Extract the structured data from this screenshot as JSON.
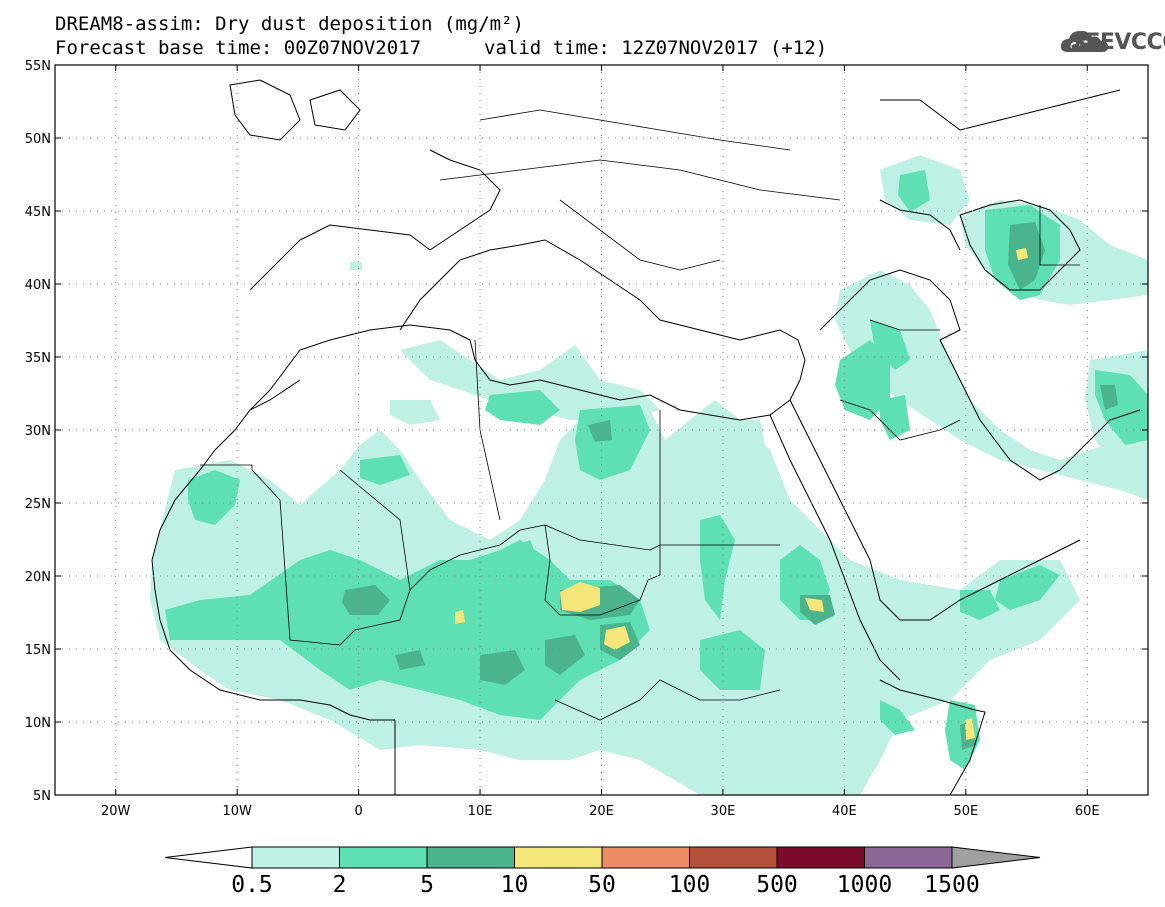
{
  "header": {
    "title": "DREAM8-assim: Dry dust deposition (mg/m²)",
    "base_time": "Forecast base time: 00Z07NOV2017",
    "valid_time": "valid time: 12Z07NOV2017 (+12)",
    "logo_text": "SEEVCCC"
  },
  "map": {
    "lon_range": [
      -25,
      65
    ],
    "lat_range": [
      5,
      55
    ],
    "lat_ticks": [
      {
        "v": 55,
        "label": "55N"
      },
      {
        "v": 50,
        "label": "50N"
      },
      {
        "v": 45,
        "label": "45N"
      },
      {
        "v": 40,
        "label": "40N"
      },
      {
        "v": 35,
        "label": "35N"
      },
      {
        "v": 30,
        "label": "30N"
      },
      {
        "v": 25,
        "label": "25N"
      },
      {
        "v": 20,
        "label": "20N"
      },
      {
        "v": 15,
        "label": "15N"
      },
      {
        "v": 10,
        "label": "10N"
      },
      {
        "v": 5,
        "label": "5N"
      }
    ],
    "lon_ticks": [
      {
        "v": -20,
        "label": "20W"
      },
      {
        "v": -10,
        "label": "10W"
      },
      {
        "v": 0,
        "label": "0"
      },
      {
        "v": 10,
        "label": "10E"
      },
      {
        "v": 20,
        "label": "20E"
      },
      {
        "v": 30,
        "label": "30E"
      },
      {
        "v": 40,
        "label": "40E"
      },
      {
        "v": 50,
        "label": "50E"
      },
      {
        "v": 60,
        "label": "60E"
      }
    ]
  },
  "colorbar": {
    "levels": [
      "0.5",
      "2",
      "5",
      "10",
      "50",
      "100",
      "500",
      "1000",
      "1500"
    ],
    "colors": [
      "#bff0e6",
      "#5ee0b4",
      "#4cb48c",
      "#f5e67c",
      "#ec8c64",
      "#b4503c",
      "#7c0a2a",
      "#8c6896",
      "#a0a0a0"
    ],
    "under_color": "#ffffff"
  }
}
